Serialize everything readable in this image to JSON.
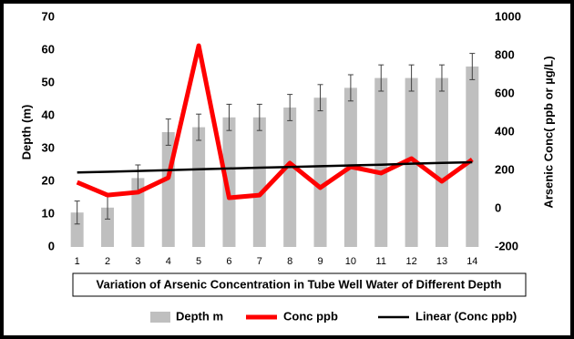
{
  "chart_data": {
    "type": "bar-line",
    "title": "Variation of Arsenic Concentration in Tube Well Water of Different Depth",
    "ylabel": "Depth (m)",
    "y2label": "Arsenic Conc( ppb or µg/L)",
    "categories": [
      "1",
      "2",
      "3",
      "4",
      "5",
      "6",
      "7",
      "8",
      "9",
      "10",
      "11",
      "12",
      "13",
      "14"
    ],
    "series": [
      {
        "name": "Depth m",
        "type": "bar",
        "color": "#bfbfbf",
        "values": [
          10.5,
          12,
          21,
          35,
          36.5,
          39.5,
          39.5,
          42.5,
          45.5,
          48.5,
          51.5,
          51.5,
          51.5,
          55
        ],
        "errors": [
          3.5,
          3.5,
          4,
          4,
          4,
          4,
          4,
          4,
          4,
          4,
          4,
          4,
          4,
          4
        ]
      },
      {
        "name": "Conc ppb",
        "type": "line",
        "axis": "y2",
        "color": "#ff0000",
        "values": [
          138,
          71,
          86,
          162,
          852,
          57,
          71,
          238,
          110,
          219,
          186,
          262,
          143,
          257
        ]
      },
      {
        "name": "Linear (Conc ppb)",
        "type": "line",
        "axis": "y2",
        "color": "#000000",
        "values": [
          189,
          193,
          197,
          201,
          206,
          210,
          214,
          218,
          222,
          226,
          230,
          235,
          239,
          243
        ]
      }
    ],
    "ylim": [
      0,
      70
    ],
    "yticks": [
      0,
      10,
      20,
      30,
      40,
      50,
      60,
      70
    ],
    "y2lim": [
      -200,
      1000
    ],
    "y2ticks": [
      -200,
      0,
      200,
      400,
      600,
      800,
      1000
    ]
  }
}
